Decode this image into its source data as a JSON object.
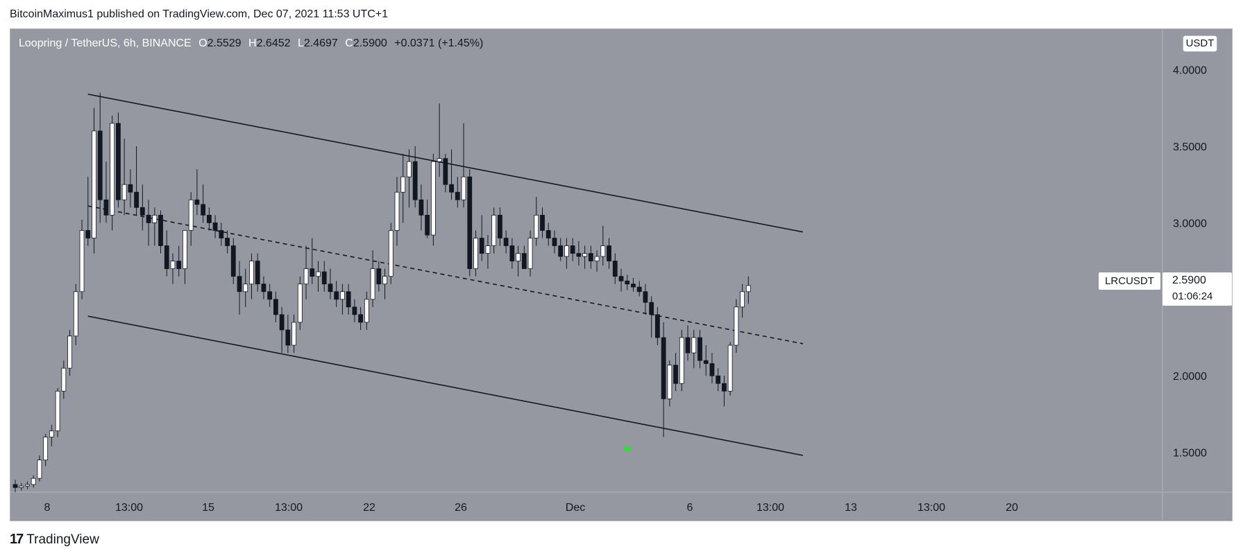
{
  "header": {
    "publisher": "BitcoinMaximus1 published on TradingView.com, Dec 07, 2021 11:53 UTC+1"
  },
  "legend": {
    "pair": "Loopring / TetherUS, 6h, BINANCE",
    "o_label": "O",
    "o": "2.5529",
    "h_label": "H",
    "h": "2.6452",
    "l_label": "L",
    "l": "2.4697",
    "c_label": "C",
    "c": "2.5900",
    "change": "+0.0371 (+1.45%)"
  },
  "currency": "USDT",
  "symbol": "LRCUSDT",
  "last_price": "2.5900",
  "countdown": "01:06:24",
  "branding": {
    "logo_text": "TradingView"
  },
  "chart_data": {
    "type": "candlestick",
    "ylim": [
      1.24,
      4.27
    ],
    "y_ticks": [
      "4.0000",
      "3.5000",
      "3.0000",
      "2.5000",
      "2.0000",
      "1.5000"
    ],
    "x_ticks": [
      "8",
      "13:00",
      "15",
      "13:00",
      "22",
      "26",
      "Dec",
      "6",
      "13:00",
      "13",
      "13:00",
      "20"
    ],
    "bar_x_range": [
      0,
      130
    ],
    "candles": [
      [
        1.29,
        1.32,
        1.24,
        1.27
      ],
      [
        1.27,
        1.3,
        1.25,
        1.28
      ],
      [
        1.28,
        1.31,
        1.26,
        1.29
      ],
      [
        1.29,
        1.35,
        1.27,
        1.33
      ],
      [
        1.33,
        1.48,
        1.31,
        1.45
      ],
      [
        1.45,
        1.62,
        1.41,
        1.6
      ],
      [
        1.6,
        1.68,
        1.54,
        1.64
      ],
      [
        1.64,
        1.92,
        1.6,
        1.9
      ],
      [
        1.9,
        2.1,
        1.85,
        2.05
      ],
      [
        2.05,
        2.3,
        2.0,
        2.26
      ],
      [
        2.26,
        2.6,
        2.2,
        2.55
      ],
      [
        2.55,
        3.02,
        2.5,
        2.95
      ],
      [
        2.95,
        3.3,
        2.85,
        2.9
      ],
      [
        2.9,
        3.75,
        2.8,
        3.6
      ],
      [
        3.6,
        3.85,
        3.0,
        3.15
      ],
      [
        3.15,
        3.4,
        3.0,
        3.05
      ],
      [
        3.05,
        3.7,
        2.95,
        3.65
      ],
      [
        3.65,
        3.72,
        3.1,
        3.15
      ],
      [
        3.15,
        3.55,
        3.05,
        3.25
      ],
      [
        3.25,
        3.35,
        3.1,
        3.2
      ],
      [
        3.2,
        3.5,
        3.05,
        3.1
      ],
      [
        3.1,
        3.25,
        2.95,
        3.05
      ],
      [
        3.05,
        3.15,
        2.85,
        3.0
      ],
      [
        3.0,
        3.1,
        2.85,
        3.05
      ],
      [
        3.05,
        3.08,
        2.8,
        2.85
      ],
      [
        2.85,
        2.95,
        2.65,
        2.7
      ],
      [
        2.7,
        2.8,
        2.6,
        2.75
      ],
      [
        2.75,
        2.85,
        2.65,
        2.7
      ],
      [
        2.7,
        2.95,
        2.6,
        2.95
      ],
      [
        2.95,
        3.2,
        2.85,
        3.15
      ],
      [
        3.15,
        3.35,
        3.05,
        3.12
      ],
      [
        3.12,
        3.25,
        3.0,
        3.05
      ],
      [
        3.05,
        3.1,
        2.95,
        3.0
      ],
      [
        3.0,
        3.05,
        2.9,
        2.95
      ],
      [
        2.95,
        3.0,
        2.85,
        2.9
      ],
      [
        2.9,
        2.95,
        2.8,
        2.85
      ],
      [
        2.85,
        2.9,
        2.6,
        2.65
      ],
      [
        2.65,
        2.75,
        2.4,
        2.55
      ],
      [
        2.55,
        2.7,
        2.45,
        2.6
      ],
      [
        2.6,
        2.8,
        2.5,
        2.75
      ],
      [
        2.75,
        2.8,
        2.55,
        2.6
      ],
      [
        2.6,
        2.65,
        2.5,
        2.55
      ],
      [
        2.55,
        2.6,
        2.45,
        2.5
      ],
      [
        2.5,
        2.55,
        2.35,
        2.4
      ],
      [
        2.4,
        2.45,
        2.15,
        2.3
      ],
      [
        2.3,
        2.4,
        2.15,
        2.2
      ],
      [
        2.2,
        2.4,
        2.15,
        2.35
      ],
      [
        2.35,
        2.65,
        2.3,
        2.6
      ],
      [
        2.6,
        2.85,
        2.5,
        2.7
      ],
      [
        2.7,
        2.9,
        2.6,
        2.65
      ],
      [
        2.65,
        2.75,
        2.55,
        2.68
      ],
      [
        2.68,
        2.75,
        2.55,
        2.6
      ],
      [
        2.6,
        2.7,
        2.5,
        2.55
      ],
      [
        2.55,
        2.62,
        2.45,
        2.5
      ],
      [
        2.5,
        2.6,
        2.4,
        2.55
      ],
      [
        2.55,
        2.6,
        2.4,
        2.45
      ],
      [
        2.45,
        2.5,
        2.35,
        2.4
      ],
      [
        2.4,
        2.45,
        2.3,
        2.35
      ],
      [
        2.35,
        2.55,
        2.3,
        2.5
      ],
      [
        2.5,
        2.82,
        2.45,
        2.7
      ],
      [
        2.7,
        2.75,
        2.55,
        2.6
      ],
      [
        2.6,
        2.7,
        2.5,
        2.65
      ],
      [
        2.65,
        3.0,
        2.6,
        2.95
      ],
      [
        2.95,
        3.3,
        2.85,
        3.2
      ],
      [
        3.2,
        3.45,
        3.0,
        3.3
      ],
      [
        3.3,
        3.48,
        3.1,
        3.4
      ],
      [
        3.4,
        3.5,
        3.1,
        3.15
      ],
      [
        3.15,
        3.25,
        2.95,
        3.05
      ],
      [
        3.05,
        3.15,
        2.9,
        2.92
      ],
      [
        2.92,
        3.45,
        2.85,
        3.4
      ],
      [
        3.4,
        3.78,
        3.3,
        3.42
      ],
      [
        3.42,
        3.45,
        3.2,
        3.25
      ],
      [
        3.25,
        3.48,
        3.15,
        3.2
      ],
      [
        3.2,
        3.3,
        3.1,
        3.15
      ],
      [
        3.15,
        3.65,
        3.1,
        3.3
      ],
      [
        3.3,
        3.35,
        2.65,
        2.7
      ],
      [
        2.7,
        2.95,
        2.65,
        2.9
      ],
      [
        2.9,
        3.05,
        2.75,
        2.8
      ],
      [
        2.8,
        2.92,
        2.7,
        2.85
      ],
      [
        2.85,
        3.1,
        2.8,
        3.05
      ],
      [
        3.05,
        3.1,
        2.85,
        2.9
      ],
      [
        2.9,
        2.95,
        2.8,
        2.85
      ],
      [
        2.85,
        2.9,
        2.7,
        2.75
      ],
      [
        2.75,
        2.85,
        2.65,
        2.8
      ],
      [
        2.8,
        2.85,
        2.7,
        2.7
      ],
      [
        2.7,
        2.95,
        2.65,
        2.9
      ],
      [
        2.9,
        3.17,
        2.85,
        3.05
      ],
      [
        3.05,
        3.1,
        2.9,
        2.95
      ],
      [
        2.95,
        3.0,
        2.85,
        2.9
      ],
      [
        2.9,
        2.95,
        2.8,
        2.85
      ],
      [
        2.85,
        2.9,
        2.75,
        2.78
      ],
      [
        2.78,
        2.9,
        2.7,
        2.85
      ],
      [
        2.85,
        2.9,
        2.75,
        2.8
      ],
      [
        2.8,
        2.88,
        2.72,
        2.78
      ],
      [
        2.78,
        2.85,
        2.7,
        2.8
      ],
      [
        2.8,
        2.85,
        2.7,
        2.75
      ],
      [
        2.75,
        2.82,
        2.68,
        2.78
      ],
      [
        2.78,
        2.98,
        2.72,
        2.85
      ],
      [
        2.85,
        2.9,
        2.7,
        2.75
      ],
      [
        2.75,
        2.8,
        2.6,
        2.65
      ],
      [
        2.65,
        2.7,
        2.55,
        2.62
      ],
      [
        2.62,
        2.66,
        2.56,
        2.6
      ],
      [
        2.6,
        2.64,
        2.55,
        2.58
      ],
      [
        2.58,
        2.62,
        2.52,
        2.55
      ],
      [
        2.55,
        2.6,
        2.4,
        2.48
      ],
      [
        2.48,
        2.52,
        2.25,
        2.4
      ],
      [
        2.4,
        2.45,
        2.2,
        2.25
      ],
      [
        2.25,
        2.35,
        1.6,
        1.85
      ],
      [
        1.85,
        2.1,
        1.8,
        2.07
      ],
      [
        2.07,
        2.15,
        1.9,
        1.95
      ],
      [
        1.95,
        2.3,
        1.9,
        2.25
      ],
      [
        2.25,
        2.33,
        2.1,
        2.15
      ],
      [
        2.15,
        2.3,
        2.05,
        2.25
      ],
      [
        2.25,
        2.3,
        2.05,
        2.1
      ],
      [
        2.1,
        2.2,
        2.0,
        2.08
      ],
      [
        2.08,
        2.15,
        1.95,
        2.0
      ],
      [
        2.0,
        2.05,
        1.9,
        1.95
      ],
      [
        1.95,
        2.0,
        1.8,
        1.9
      ],
      [
        1.9,
        2.22,
        1.87,
        2.2
      ],
      [
        2.2,
        2.5,
        2.15,
        2.45
      ],
      [
        2.45,
        2.6,
        2.38,
        2.55
      ],
      [
        2.55,
        2.65,
        2.47,
        2.59
      ]
    ],
    "trendlines": [
      {
        "style": "solid",
        "points": [
          [
            12,
            3.84
          ],
          [
            130,
            2.94
          ]
        ]
      },
      {
        "style": "solid",
        "points": [
          [
            12,
            2.39
          ],
          [
            130,
            1.48
          ]
        ]
      },
      {
        "style": "dashed",
        "points": [
          [
            12,
            3.11
          ],
          [
            130,
            2.21
          ]
        ]
      }
    ],
    "annotation": {
      "shape": "arrow-up",
      "x": 101,
      "y": 1.53,
      "color": "#00ff00"
    },
    "colors": {
      "up": "#ffffff",
      "down": "#131722",
      "background": "#9598a1"
    }
  }
}
